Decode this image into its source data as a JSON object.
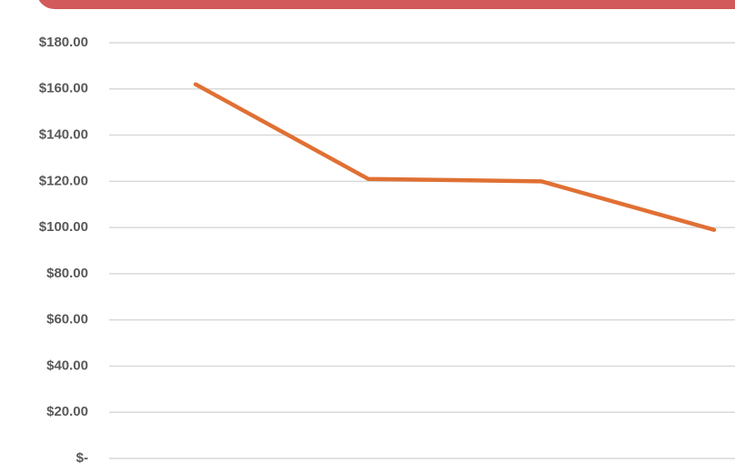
{
  "chart_data": {
    "type": "line",
    "categories": [
      null,
      null,
      null,
      null
    ],
    "series": [
      {
        "name": null,
        "color": "#e07034",
        "values": [
          162,
          121,
          120,
          99
        ]
      }
    ],
    "ylim": [
      0,
      180
    ],
    "yticks": [
      {
        "value": 0,
        "label": "$-"
      },
      {
        "value": 20,
        "label": "$20.00"
      },
      {
        "value": 40,
        "label": "$40.00"
      },
      {
        "value": 60,
        "label": "$60.00"
      },
      {
        "value": 80,
        "label": "$80.00"
      },
      {
        "value": 100,
        "label": "$100.00"
      },
      {
        "value": 120,
        "label": "$120.00"
      },
      {
        "value": 140,
        "label": "$140.00"
      },
      {
        "value": 160,
        "label": "$160.00"
      },
      {
        "value": 180,
        "label": "$180.00"
      }
    ],
    "grid": true
  }
}
